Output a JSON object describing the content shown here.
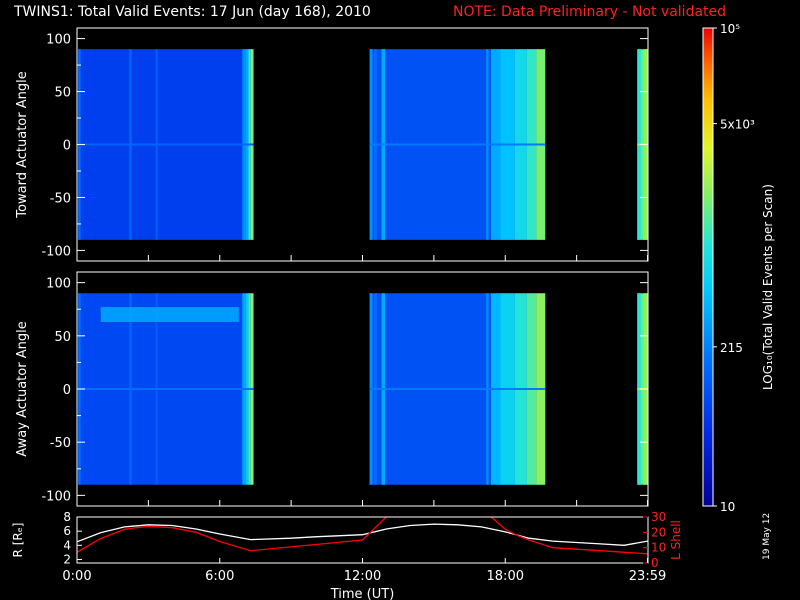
{
  "header": {
    "title": "TWINS1: Total Valid Events: 17 Jun (day 168), 2010",
    "note": "NOTE: Data Preliminary - Not validated"
  },
  "footer": {
    "date_stamp": "19 May 12"
  },
  "colors": {
    "note": "#ff2020",
    "r_line": "#ffffff",
    "lshell_line": "#ff0000"
  },
  "chart_data": [
    {
      "type": "heatmap",
      "ylabel": "Toward Actuator Angle",
      "ylim": [
        -110,
        110
      ],
      "yticks": [
        100,
        50,
        0,
        -50,
        -100
      ],
      "angle_range": [
        -90,
        90
      ],
      "segments": [
        {
          "t0": 0.05,
          "t1": 7.42,
          "level": 0.2
        },
        {
          "t0": 12.3,
          "t1": 19.68,
          "level": 0.24
        },
        {
          "t0": 23.55,
          "t1": 24.0,
          "level": 0.62
        }
      ],
      "stripes": [
        {
          "t0": 0.05,
          "t1": 0.15,
          "level": 0.3
        },
        {
          "t0": 2.2,
          "t1": 2.3,
          "level": 0.28
        },
        {
          "t0": 3.3,
          "t1": 3.4,
          "level": 0.26
        },
        {
          "t0": 6.95,
          "t1": 7.1,
          "level": 0.36
        },
        {
          "t0": 7.1,
          "t1": 7.2,
          "level": 0.4
        },
        {
          "t0": 7.2,
          "t1": 7.3,
          "level": 0.55
        },
        {
          "t0": 7.3,
          "t1": 7.42,
          "level": 0.65
        },
        {
          "t0": 12.3,
          "t1": 12.42,
          "level": 0.36
        },
        {
          "t0": 12.5,
          "t1": 12.6,
          "level": 0.3
        },
        {
          "t0": 12.8,
          "t1": 12.95,
          "level": 0.4
        },
        {
          "t0": 17.2,
          "t1": 17.3,
          "level": 0.36
        },
        {
          "t0": 17.4,
          "t1": 17.8,
          "level": 0.4
        },
        {
          "t0": 17.8,
          "t1": 18.4,
          "level": 0.44
        },
        {
          "t0": 18.4,
          "t1": 18.9,
          "level": 0.5
        },
        {
          "t0": 18.9,
          "t1": 19.3,
          "level": 0.56
        },
        {
          "t0": 19.3,
          "t1": 19.68,
          "level": 0.64
        },
        {
          "t0": 23.55,
          "t1": 23.7,
          "level": 0.55
        },
        {
          "t0": 23.8,
          "t1": 24.0,
          "level": 0.66
        }
      ],
      "bands": []
    },
    {
      "type": "heatmap",
      "ylabel": "Away Actuator Angle",
      "ylim": [
        -110,
        110
      ],
      "yticks": [
        100,
        50,
        0,
        -50,
        -100
      ],
      "angle_range": [
        -90,
        90
      ],
      "segments": [
        {
          "t0": 0.05,
          "t1": 7.42,
          "level": 0.22
        },
        {
          "t0": 12.3,
          "t1": 19.68,
          "level": 0.24
        },
        {
          "t0": 23.55,
          "t1": 24.0,
          "level": 0.62
        }
      ],
      "stripes": [
        {
          "t0": 0.05,
          "t1": 0.15,
          "level": 0.3
        },
        {
          "t0": 2.2,
          "t1": 2.3,
          "level": 0.28
        },
        {
          "t0": 3.3,
          "t1": 3.4,
          "level": 0.26
        },
        {
          "t0": 6.95,
          "t1": 7.1,
          "level": 0.4
        },
        {
          "t0": 7.1,
          "t1": 7.2,
          "level": 0.46
        },
        {
          "t0": 7.2,
          "t1": 7.3,
          "level": 0.58
        },
        {
          "t0": 7.3,
          "t1": 7.42,
          "level": 0.66
        },
        {
          "t0": 12.3,
          "t1": 12.42,
          "level": 0.36
        },
        {
          "t0": 12.5,
          "t1": 12.6,
          "level": 0.3
        },
        {
          "t0": 12.8,
          "t1": 12.95,
          "level": 0.4
        },
        {
          "t0": 17.2,
          "t1": 17.3,
          "level": 0.36
        },
        {
          "t0": 17.4,
          "t1": 17.8,
          "level": 0.42
        },
        {
          "t0": 17.8,
          "t1": 18.4,
          "level": 0.48
        },
        {
          "t0": 18.4,
          "t1": 18.9,
          "level": 0.54
        },
        {
          "t0": 18.9,
          "t1": 19.3,
          "level": 0.6
        },
        {
          "t0": 19.3,
          "t1": 19.68,
          "level": 0.66
        },
        {
          "t0": 23.55,
          "t1": 23.7,
          "level": 0.55
        },
        {
          "t0": 23.8,
          "t1": 24.0,
          "level": 0.66
        }
      ],
      "bands": [
        {
          "t0": 1.0,
          "t1": 6.8,
          "a0": 63,
          "a1": 77,
          "level": 0.4
        }
      ]
    },
    {
      "type": "line",
      "xlabel": "Time (UT)",
      "xlim": [
        0,
        24
      ],
      "xticks": [
        0,
        6,
        12,
        18,
        23.98
      ],
      "xtick_labels": [
        "0:00",
        "6:00",
        "12:00",
        "18:00",
        "23:59"
      ],
      "left_axis": {
        "label": "R [Rₑ]",
        "ylim": [
          1.5,
          8
        ],
        "ticks": [
          2,
          4,
          6,
          8
        ]
      },
      "right_axis": {
        "label": "L Shell",
        "ylim": [
          0,
          30
        ],
        "ticks": [
          0,
          10,
          20,
          30
        ]
      },
      "series": [
        {
          "axis": "left",
          "x": [
            0,
            1,
            2,
            3,
            4,
            5,
            6,
            7.3,
            9,
            10,
            12,
            13,
            14,
            15,
            16,
            17,
            18,
            19,
            20,
            21,
            22,
            23,
            23.98
          ],
          "y": [
            4.5,
            5.8,
            6.6,
            6.9,
            6.8,
            6.3,
            5.6,
            4.8,
            5.0,
            5.2,
            5.5,
            6.3,
            6.8,
            7.0,
            6.9,
            6.6,
            5.9,
            5.0,
            4.6,
            4.4,
            4.2,
            4.0,
            4.6
          ]
        },
        {
          "axis": "right",
          "x": [
            0,
            1,
            2,
            3,
            4,
            5,
            6,
            7.3,
            12,
            13.2,
            17.2,
            18,
            18.5,
            19,
            20,
            22,
            23.98
          ],
          "y": [
            7,
            16,
            22,
            24,
            23,
            20,
            14,
            8,
            15,
            33,
            33,
            22,
            18,
            15,
            10,
            8,
            6
          ]
        }
      ]
    },
    {
      "type": "colorbar",
      "label": "LOG₁₀(Total Valid Events per Scan)",
      "tick_labels": [
        "10",
        "215",
        "5x10³",
        "10⁵"
      ],
      "tick_levels": [
        0,
        0.333,
        0.8,
        1
      ]
    }
  ]
}
